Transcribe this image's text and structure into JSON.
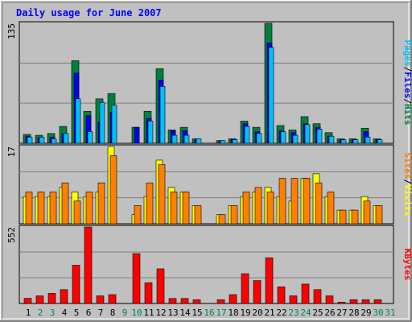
{
  "title": "Daily usage for June 2007",
  "colors": {
    "background": "#C0C0C0",
    "title": "#0000FF",
    "hits": "#008040",
    "files": "#0000FF",
    "pages": "#00C0FF",
    "visits": "#FFFF00",
    "sites": "#FF8000",
    "kbytes": "#FF0000",
    "weekend_day": "#00805C",
    "weekday": "#000000"
  },
  "chart_data": [
    {
      "type": "bar",
      "panel": "hits",
      "ymax_label": "135",
      "ylim": [
        0,
        135
      ],
      "grid": true,
      "legend": [
        "Pages",
        "Files",
        "Hits"
      ],
      "legend_sep": "/",
      "categories": [
        "1",
        "2",
        "3",
        "4",
        "5",
        "6",
        "7",
        "8",
        "9",
        "10",
        "11",
        "12",
        "13",
        "14",
        "15",
        "16",
        "17",
        "18",
        "19",
        "20",
        "21",
        "22",
        "23",
        "24",
        "25",
        "26",
        "27",
        "28",
        "29",
        "30",
        "31"
      ],
      "series": [
        {
          "name": "Hits",
          "values": [
            10,
            9,
            11,
            19,
            93,
            36,
            50,
            56,
            0,
            18,
            36,
            84,
            15,
            18,
            5,
            0,
            3,
            5,
            25,
            18,
            135,
            20,
            15,
            30,
            22,
            12,
            5,
            5,
            17,
            5,
            0
          ]
        },
        {
          "name": "Files",
          "values": [
            8,
            6,
            7,
            11,
            79,
            31,
            24,
            35,
            0,
            18,
            28,
            71,
            14,
            14,
            5,
            0,
            3,
            5,
            22,
            13,
            113,
            14,
            12,
            22,
            18,
            8,
            4,
            4,
            13,
            4,
            0
          ]
        },
        {
          "name": "Pages",
          "values": [
            7,
            7,
            5,
            11,
            50,
            13,
            46,
            43,
            0,
            0,
            25,
            64,
            9,
            9,
            5,
            0,
            3,
            4,
            19,
            11,
            108,
            13,
            9,
            21,
            16,
            8,
            4,
            4,
            7,
            4,
            0
          ]
        }
      ]
    },
    {
      "type": "bar",
      "panel": "visits",
      "ymax_label": "17",
      "ylim": [
        0,
        17
      ],
      "grid": true,
      "legend": [
        "Sites",
        "Visits"
      ],
      "legend_sep": "/",
      "categories": [
        "1",
        "2",
        "3",
        "4",
        "5",
        "6",
        "7",
        "8",
        "9",
        "10",
        "11",
        "12",
        "13",
        "14",
        "15",
        "16",
        "17",
        "18",
        "19",
        "20",
        "21",
        "22",
        "23",
        "24",
        "25",
        "26",
        "27",
        "28",
        "29",
        "30",
        "31"
      ],
      "series": [
        {
          "name": "Visits",
          "values": [
            6,
            6,
            6,
            8,
            7,
            6,
            7,
            17,
            0,
            2,
            6,
            14,
            8,
            7,
            4,
            0,
            2,
            4,
            6,
            7,
            8,
            6,
            5,
            10,
            11,
            6,
            3,
            3,
            6,
            4,
            0
          ]
        },
        {
          "name": "Sites",
          "values": [
            7,
            7,
            7,
            9,
            5,
            7,
            9,
            15,
            0,
            4,
            9,
            13,
            7,
            7,
            4,
            0,
            2,
            4,
            7,
            8,
            7,
            10,
            10,
            10,
            9,
            7,
            3,
            3,
            5,
            4,
            0
          ]
        }
      ]
    },
    {
      "type": "bar",
      "panel": "kbytes",
      "ymax_label": "552",
      "ylim": [
        0,
        552
      ],
      "grid": true,
      "legend": [
        "KBytes"
      ],
      "legend_sep": "/",
      "categories": [
        "1",
        "2",
        "3",
        "4",
        "5",
        "6",
        "7",
        "8",
        "9",
        "10",
        "11",
        "12",
        "13",
        "14",
        "15",
        "16",
        "17",
        "18",
        "19",
        "20",
        "21",
        "22",
        "23",
        "24",
        "25",
        "26",
        "27",
        "28",
        "29",
        "30",
        "31"
      ],
      "series": [
        {
          "name": "KBytes",
          "values": [
            37,
            55,
            73,
            100,
            276,
            552,
            55,
            64,
            0,
            360,
            150,
            250,
            36,
            36,
            27,
            0,
            27,
            64,
            215,
            165,
            330,
            120,
            55,
            140,
            100,
            55,
            9,
            27,
            27,
            27,
            0
          ]
        }
      ]
    }
  ],
  "x_axis": {
    "labels": [
      "1",
      "2",
      "3",
      "4",
      "5",
      "6",
      "7",
      "8",
      "9",
      "10",
      "11",
      "12",
      "13",
      "14",
      "15",
      "16",
      "17",
      "18",
      "19",
      "20",
      "21",
      "22",
      "23",
      "24",
      "25",
      "26",
      "27",
      "28",
      "29",
      "30",
      "31"
    ],
    "weekend": [
      false,
      true,
      true,
      false,
      false,
      false,
      false,
      false,
      true,
      true,
      false,
      false,
      false,
      false,
      false,
      true,
      true,
      false,
      false,
      false,
      false,
      false,
      true,
      true,
      false,
      false,
      false,
      false,
      false,
      true,
      true
    ]
  }
}
